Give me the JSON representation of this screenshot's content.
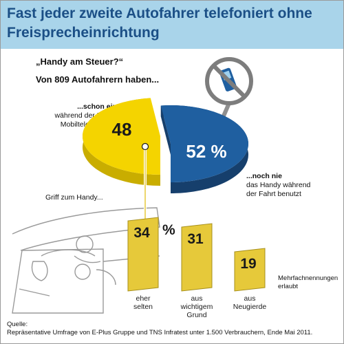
{
  "title": "Fast jeder zweite Autofahrer telefoniert ohne Freisprecheinrichtung",
  "subtitle_quote": "„Handy am Steuer?“",
  "subtitle_base": "Von 809 Autofahrern haben...",
  "colors": {
    "header_bg": "#a9d4ea",
    "title": "#1b4f86",
    "yellow": "#f4d400",
    "yellow_dark": "#c9ad00",
    "blue": "#1f5fa0",
    "blue_dark": "#163f6c",
    "bar": "#e6c93a"
  },
  "icon": "no-phone-sign-icon",
  "chart_data": [
    {
      "type": "pie",
      "slices": [
        {
          "value": 48,
          "value_label": "48",
          "label_lead": "...schon einmal",
          "label_rest": "während der Fahrt zum Mobiltelefon gegriffen"
        },
        {
          "value": 52,
          "value_label": "52 %",
          "label_lead": "...noch nie",
          "label_rest": "das Handy während der Fahrt benutzt"
        }
      ]
    },
    {
      "type": "bar",
      "title": "Griff zum Handy...",
      "categories": [
        "eher selten",
        "aus wichtigem Grund",
        "aus Neugierde"
      ],
      "category_lines": [
        [
          "eher",
          "selten"
        ],
        [
          "aus",
          "wichtigem",
          "Grund"
        ],
        [
          "aus",
          "Neugierde"
        ]
      ],
      "values": [
        34,
        31,
        19
      ],
      "value_labels": [
        "34",
        "31",
        "19"
      ],
      "unit": "%",
      "note": [
        "Mehrfachnennungen",
        "erlaubt"
      ]
    }
  ],
  "source": {
    "label": "Quelle:",
    "text": "Repräsentative Umfrage von E-Plus Gruppe und TNS Infratest unter 1.500 Verbrauchern, Ende Mai 2011."
  }
}
